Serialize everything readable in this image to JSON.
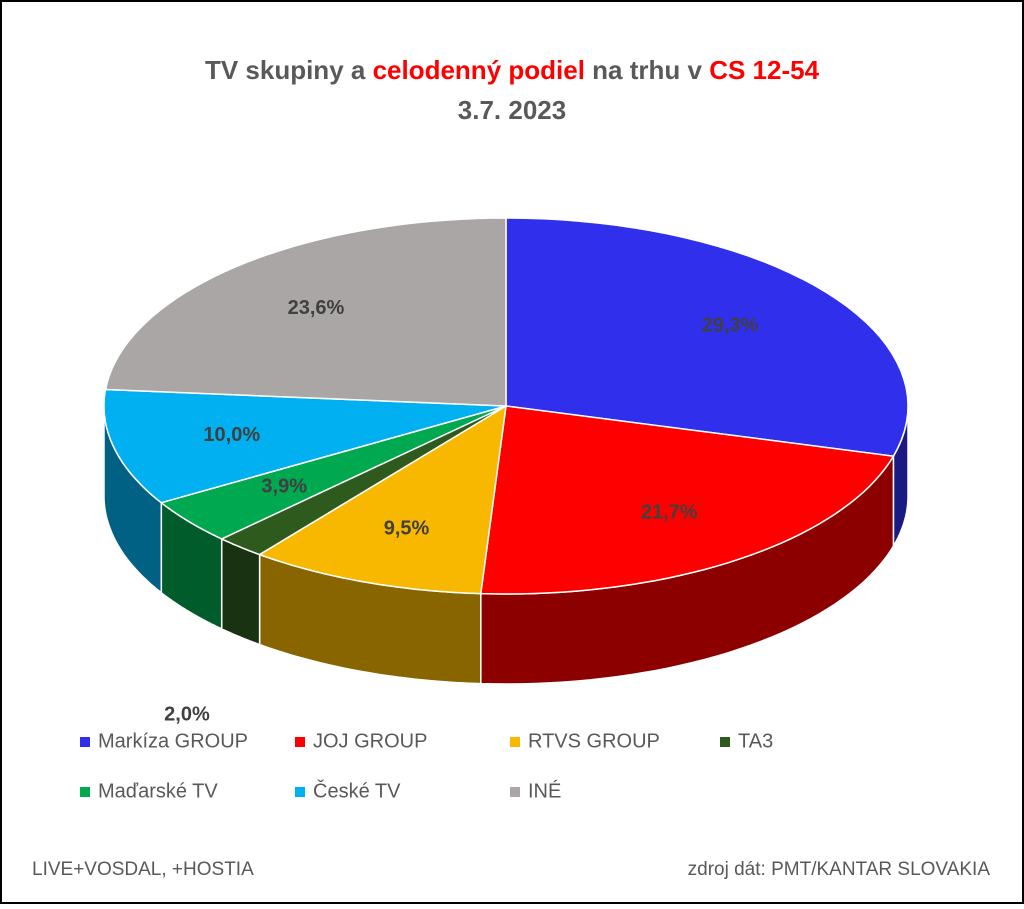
{
  "chart_data": {
    "type": "pie3d",
    "title": [
      "TV skupiny a ",
      "celodenný podiel",
      " na trhu v ",
      "CS 12-54"
    ],
    "title_colors": [
      "#595959",
      "#ff0000",
      "#595959",
      "#ff0000"
    ],
    "subtitle": "3.7. 2023",
    "categories": [
      "Markíza GROUP",
      "JOJ GROUP",
      "RTVS GROUP",
      "TA3",
      "Maďarské  TV",
      "České  TV",
      "INÉ"
    ],
    "values": [
      29.3,
      21.7,
      9.5,
      2.0,
      3.9,
      10.0,
      23.6
    ],
    "value_labels": [
      "29,3%",
      "21,7%",
      "9,5%",
      "2,0%",
      "3,9%",
      "10,0%",
      "23,6%"
    ],
    "colors": [
      "#2f2fec",
      "#ff0000",
      "#f9b800",
      "#2e5a1e",
      "#00a94f",
      "#00b0f0",
      "#aaa6a6"
    ],
    "notes": [
      "LIVE+VOSDAL, +HOSTIA",
      "zdroj dát: PMT/KANTAR SLOVAKIA"
    ]
  }
}
